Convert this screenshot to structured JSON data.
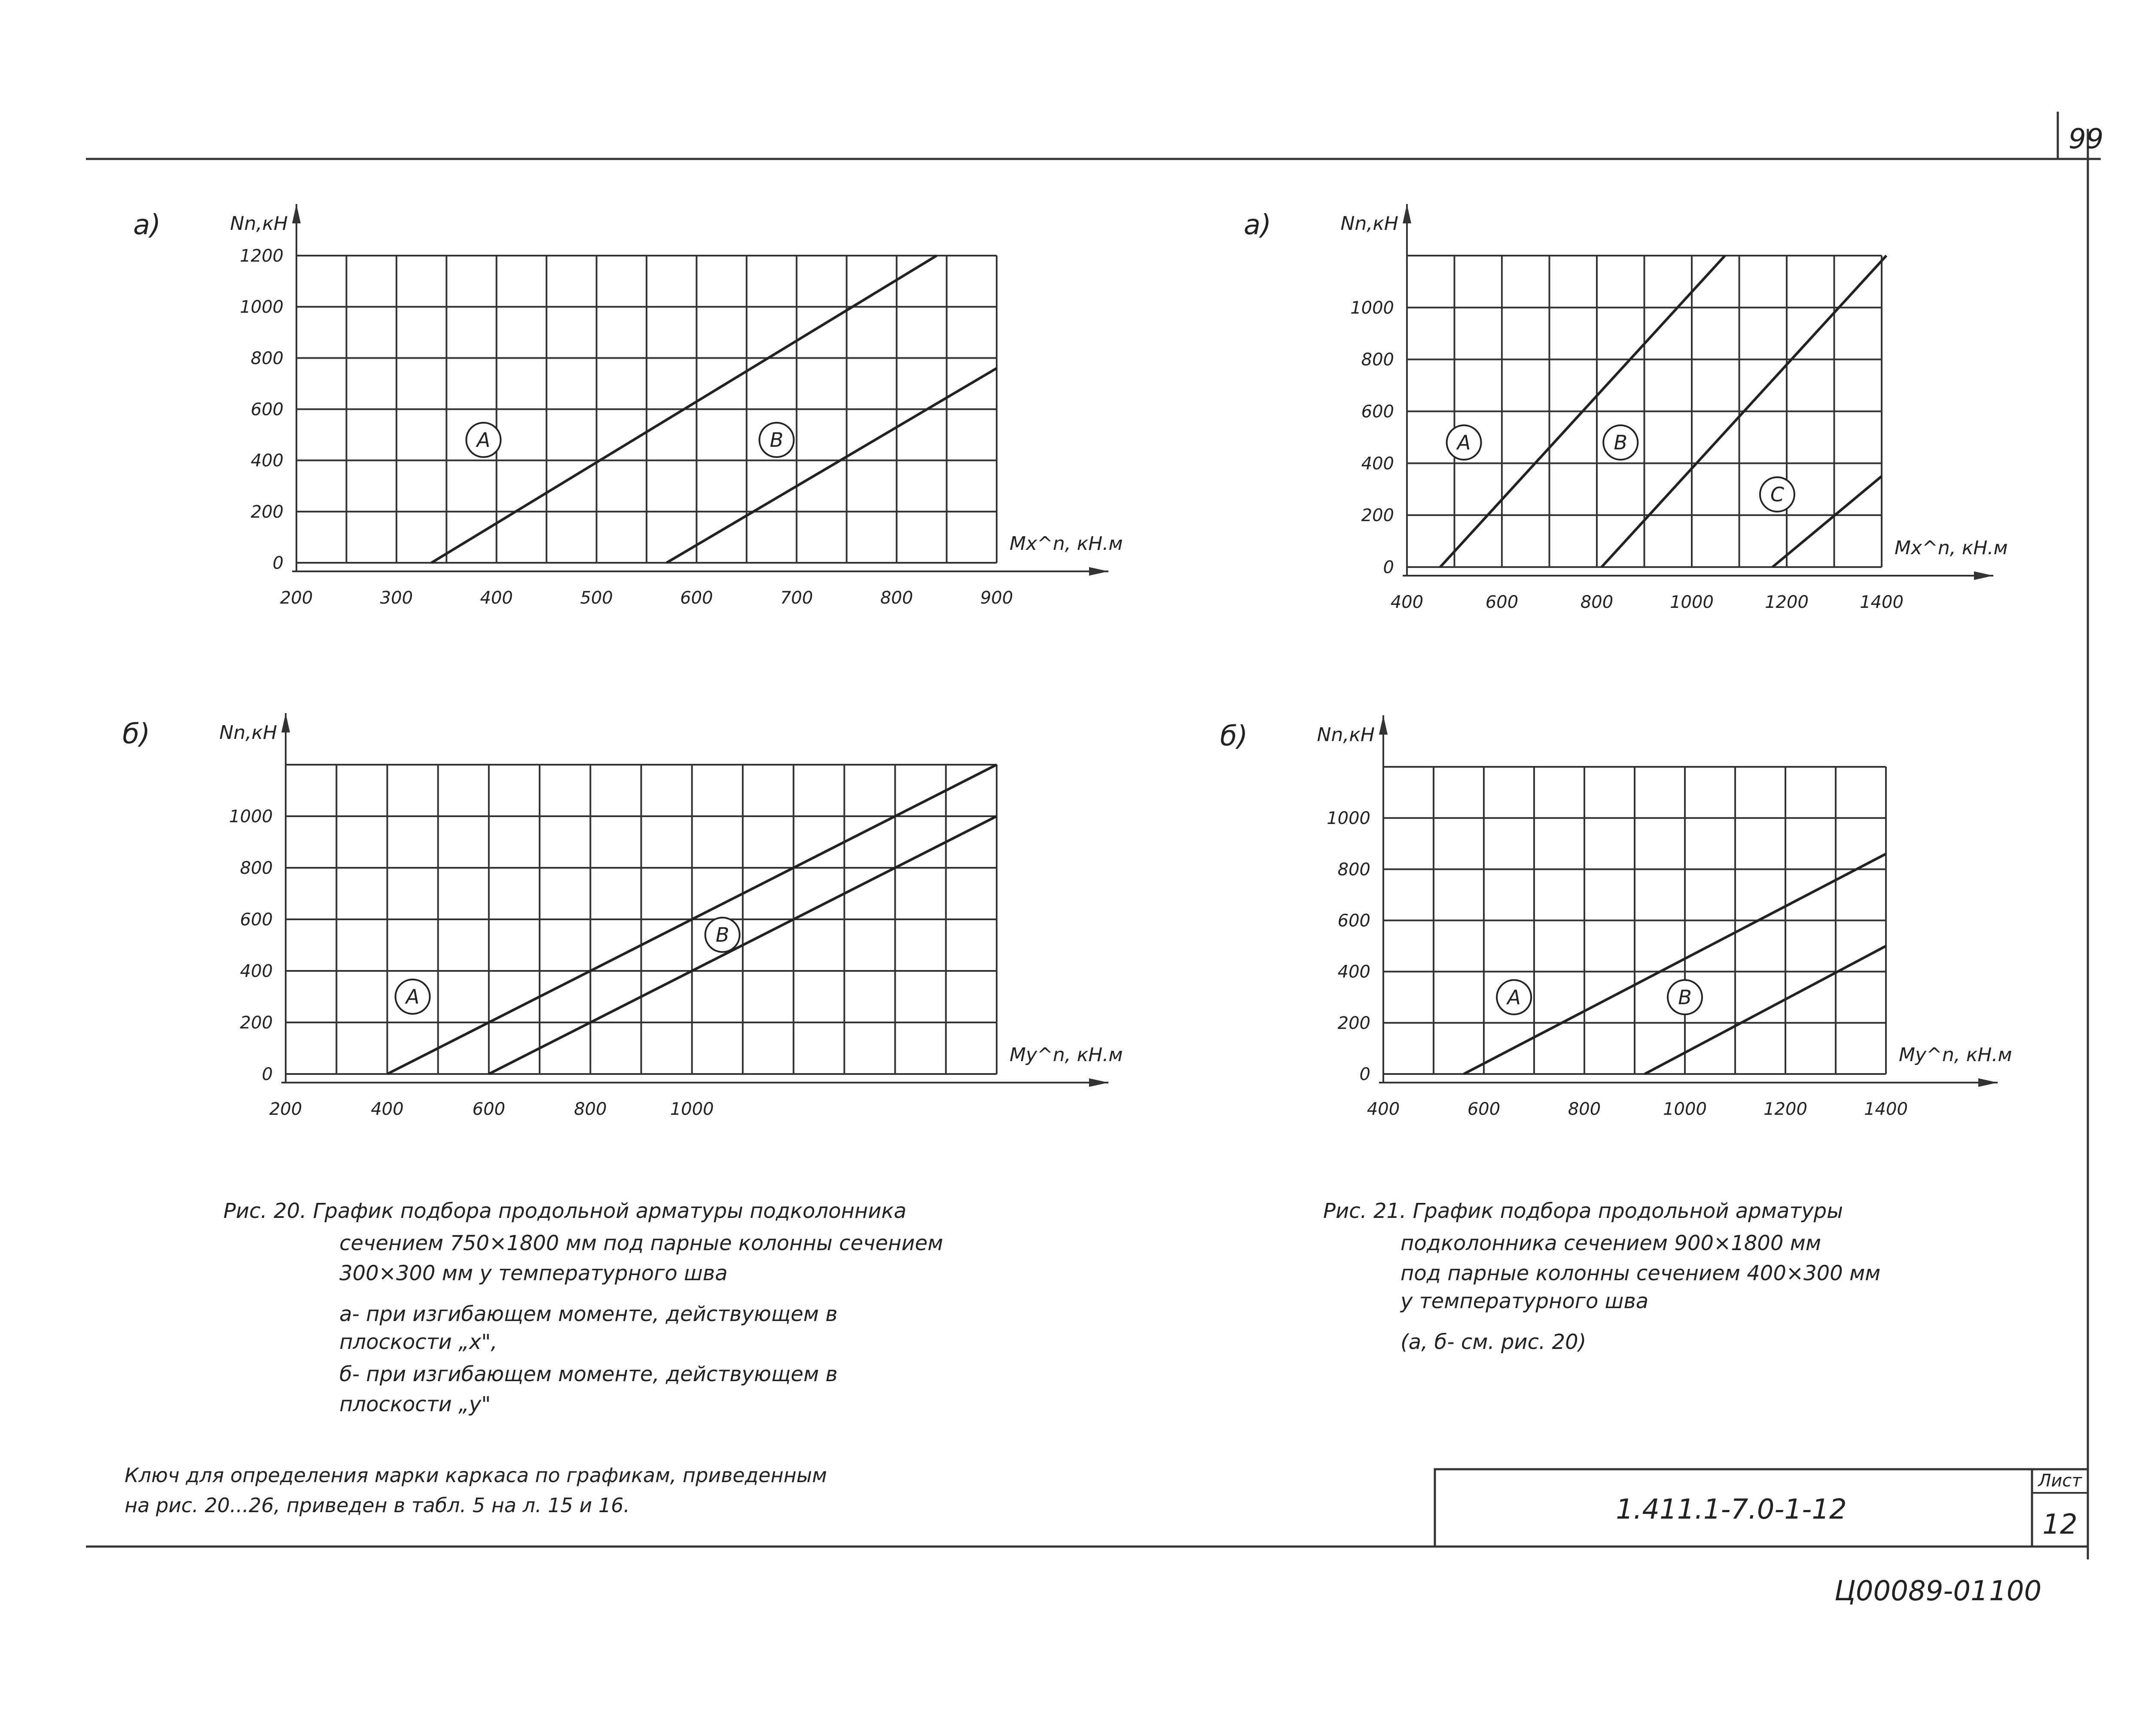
{
  "sheet_number": "99",
  "stamp": {
    "code": "1.411.1-7.0-1-12",
    "sheet_label": "Лист",
    "sheet_value": "12"
  },
  "archive_number": "Ц00089-01",
  "page_number": "100",
  "captions": {
    "fig20": {
      "lines": [
        "Рис. 20. График подбора продольной арматуры подколонника",
        "сечением 750×1800 мм под парные колонны сечением",
        "300×300 мм у температурного шва",
        "а- при изгибающем моменте, действующем в",
        "плоскости „x\",",
        "б- при изгибающем моменте, действующем в",
        "плоскости „y\""
      ]
    },
    "fig21": {
      "lines": [
        "Рис. 21. График подбора продольной арматуры",
        "подколонника сечением 900×1800 мм",
        "под парные колонны сечением 400×300 мм",
        "у температурного шва",
        "(а, б- см. рис. 20)"
      ]
    }
  },
  "footnote": [
    "Ключ для определения марки каркаса по графикам, приведенным",
    "на рис. 20...26, приведен в табл. 5 на л. 15 и 16."
  ],
  "chart_data": [
    {
      "type": "line",
      "panel_label": "а)",
      "xlabel": "Mx^n, кН.м",
      "ylabel": "Nn,кН",
      "xlim": [
        200,
        900
      ],
      "ylim": [
        0,
        1200
      ],
      "x_ticks": [
        200,
        300,
        400,
        500,
        600,
        700,
        800,
        900
      ],
      "y_ticks": [
        0,
        200,
        400,
        600,
        800,
        1000,
        1200
      ],
      "grid": true,
      "series": [
        {
          "name": "А",
          "x": [
            335,
            840
          ],
          "y": [
            0,
            1200
          ],
          "label_at": [
            387,
            480
          ]
        },
        {
          "name": "В",
          "x": [
            570,
            900
          ],
          "y": [
            0,
            760
          ],
          "label_at": [
            680,
            480
          ]
        }
      ]
    },
    {
      "type": "line",
      "panel_label": "а)",
      "xlabel": "Mx^n, кН.м",
      "ylabel": "Nn,кН",
      "xlim": [
        400,
        1400
      ],
      "ylim": [
        0,
        1200
      ],
      "x_ticks": [
        400,
        600,
        800,
        1000,
        1200,
        1400
      ],
      "y_ticks": [
        0,
        200,
        400,
        600,
        800,
        1000
      ],
      "grid": true,
      "series": [
        {
          "name": "А",
          "x": [
            470,
            1070
          ],
          "y": [
            0,
            1200
          ],
          "label_at": [
            520,
            480
          ]
        },
        {
          "name": "В",
          "x": [
            810,
            1410
          ],
          "y": [
            0,
            1200
          ],
          "label_at": [
            850,
            480
          ]
        },
        {
          "name": "С",
          "x": [
            1170,
            1400
          ],
          "y": [
            0,
            350
          ],
          "label_at": [
            1180,
            280
          ]
        }
      ]
    },
    {
      "type": "line",
      "panel_label": "б)",
      "xlabel": "My^n, кН.м",
      "ylabel": "Nn,кН",
      "xlim": [
        200,
        1600
      ],
      "ylim": [
        0,
        1200
      ],
      "x_ticks": [
        200,
        400,
        600,
        800,
        1000
      ],
      "y_ticks": [
        0,
        200,
        400,
        600,
        800,
        1000
      ],
      "grid": true,
      "series": [
        {
          "name": "А",
          "x": [
            400,
            1600
          ],
          "y": [
            0,
            1200
          ],
          "label_at": [
            450,
            300
          ]
        },
        {
          "name": "В",
          "x": [
            600,
            1600
          ],
          "y": [
            0,
            1000
          ],
          "label_at": [
            1060,
            540
          ]
        }
      ]
    },
    {
      "type": "line",
      "panel_label": "б)",
      "xlabel": "My^n, кН.м",
      "ylabel": "Nn,кН",
      "xlim": [
        400,
        1400
      ],
      "ylim": [
        0,
        1200
      ],
      "x_ticks": [
        400,
        600,
        800,
        1000,
        1200,
        1400
      ],
      "y_ticks": [
        0,
        200,
        400,
        600,
        800,
        1000
      ],
      "grid": true,
      "series": [
        {
          "name": "А",
          "x": [
            560,
            1400
          ],
          "y": [
            0,
            860
          ],
          "label_at": [
            660,
            300
          ]
        },
        {
          "name": "В",
          "x": [
            920,
            1400
          ],
          "y": [
            0,
            500
          ],
          "label_at": [
            1000,
            300
          ]
        }
      ]
    }
  ]
}
